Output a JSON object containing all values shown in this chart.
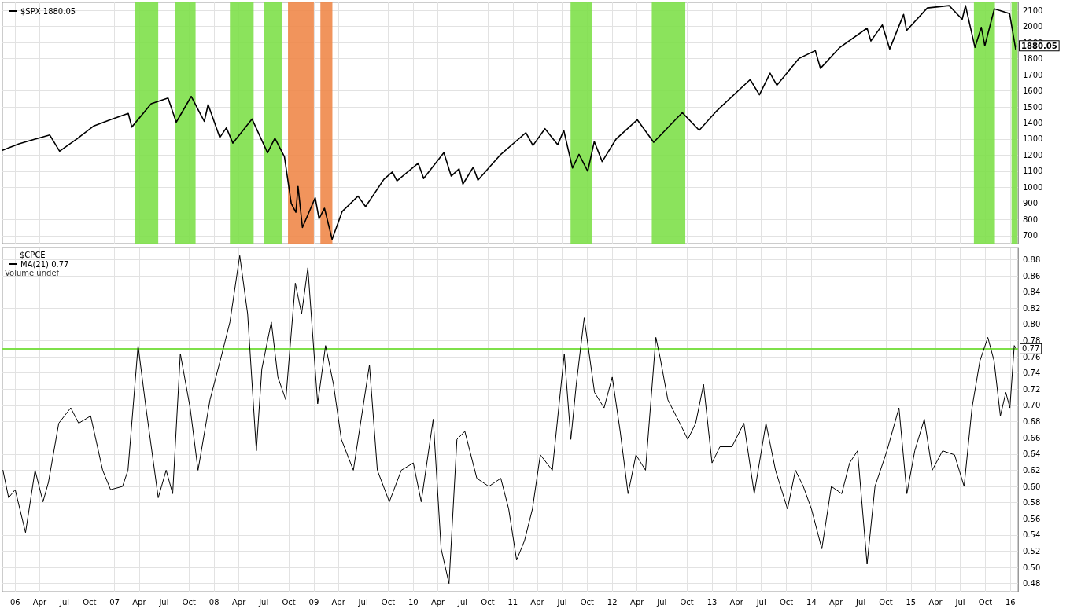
{
  "chart_data": [
    {
      "type": "line",
      "legend": "top left",
      "grid": true,
      "marker": "none",
      "line_style": "solid",
      "tick_labels": "y",
      "xlim": [
        "2005-11-15",
        "2016-01-29"
      ],
      "xticks": [
        {
          "value": "2006-01-01",
          "label": null
        },
        {
          "value": "2006-04-01",
          "label": null
        },
        {
          "value": "2006-07-01",
          "label": null
        },
        {
          "value": "2006-10-01",
          "label": null
        },
        {
          "value": "2007-01-01",
          "label": null
        },
        {
          "value": "2007-04-01",
          "label": null
        },
        {
          "value": "2007-07-01",
          "label": null
        },
        {
          "value": "2007-10-01",
          "label": null
        },
        {
          "value": "2008-01-01",
          "label": null
        },
        {
          "value": "2008-04-01",
          "label": null
        },
        {
          "value": "2008-07-01",
          "label": null
        },
        {
          "value": "2008-10-01",
          "label": null
        },
        {
          "value": "2009-01-01",
          "label": null
        },
        {
          "value": "2009-04-01",
          "label": null
        },
        {
          "value": "2009-07-01",
          "label": null
        },
        {
          "value": "2009-10-01",
          "label": null
        },
        {
          "value": "2010-01-01",
          "label": null
        },
        {
          "value": "2010-04-01",
          "label": null
        },
        {
          "value": "2010-07-01",
          "label": null
        },
        {
          "value": "2010-10-01",
          "label": null
        },
        {
          "value": "2011-01-01",
          "label": null
        },
        {
          "value": "2011-04-01",
          "label": null
        },
        {
          "value": "2011-07-01",
          "label": null
        },
        {
          "value": "2011-10-01",
          "label": null
        },
        {
          "value": "2012-01-01",
          "label": null
        },
        {
          "value": "2012-04-01",
          "label": null
        },
        {
          "value": "2012-07-01",
          "label": null
        },
        {
          "value": "2012-10-01",
          "label": null
        },
        {
          "value": "2013-01-01",
          "label": null
        },
        {
          "value": "2013-04-01",
          "label": null
        },
        {
          "value": "2013-07-01",
          "label": null
        },
        {
          "value": "2013-10-01",
          "label": null
        },
        {
          "value": "2014-01-01",
          "label": null
        },
        {
          "value": "2014-04-01",
          "label": null
        },
        {
          "value": "2014-07-01",
          "label": null
        },
        {
          "value": "2014-10-01",
          "label": null
        },
        {
          "value": "2015-01-01",
          "label": null
        },
        {
          "value": "2015-04-01",
          "label": null
        },
        {
          "value": "2015-07-01",
          "label": null
        },
        {
          "value": "2015-10-01",
          "label": null
        },
        {
          "value": "2016-01-01",
          "label": null
        }
      ],
      "ylim": [
        650,
        2150
      ],
      "yticks": [
        700,
        800,
        900,
        1000,
        1100,
        1200,
        1300,
        1400,
        1500,
        1600,
        1700,
        1800,
        1900,
        2000,
        2100
      ],
      "series": [
        {
          "name": "$SPX 1880.05",
          "color": "#000000",
          "x": [
            "2005-11-15",
            "2006-01-15",
            "2006-03-15",
            "2006-05-08",
            "2006-06-13",
            "2006-08-15",
            "2006-10-15",
            "2006-12-15",
            "2007-02-20",
            "2007-03-05",
            "2007-05-15",
            "2007-07-16",
            "2007-08-15",
            "2007-10-09",
            "2007-11-26",
            "2007-12-10",
            "2008-01-22",
            "2008-02-15",
            "2008-03-10",
            "2008-05-19",
            "2008-07-15",
            "2008-08-11",
            "2008-09-15",
            "2008-10-10",
            "2008-10-27",
            "2008-11-04",
            "2008-11-20",
            "2009-01-06",
            "2009-01-20",
            "2009-02-09",
            "2009-03-09",
            "2009-04-15",
            "2009-06-12",
            "2009-07-10",
            "2009-09-15",
            "2009-10-16",
            "2009-11-02",
            "2010-01-19",
            "2010-02-08",
            "2010-04-23",
            "2010-05-20",
            "2010-06-18",
            "2010-07-02",
            "2010-08-09",
            "2010-08-26",
            "2010-11-15",
            "2011-01-15",
            "2011-02-18",
            "2011-03-16",
            "2011-04-29",
            "2011-06-15",
            "2011-07-07",
            "2011-08-08",
            "2011-09-01",
            "2011-10-03",
            "2011-10-27",
            "2011-11-25",
            "2012-01-15",
            "2012-04-02",
            "2012-06-01",
            "2012-09-14",
            "2012-11-15",
            "2013-01-15",
            "2013-05-21",
            "2013-06-24",
            "2013-08-02",
            "2013-08-27",
            "2013-11-15",
            "2014-01-15",
            "2014-02-03",
            "2014-04-15",
            "2014-07-24",
            "2014-08-07",
            "2014-09-18",
            "2014-10-15",
            "2014-12-05",
            "2014-12-16",
            "2015-03-02",
            "2015-05-21",
            "2015-07-08",
            "2015-07-20",
            "2015-08-24",
            "2015-09-16",
            "2015-09-29",
            "2015-11-03",
            "2015-12-29",
            "2016-01-20",
            "2016-01-22"
          ],
          "values": [
            1230,
            1270,
            1300,
            1325,
            1225,
            1300,
            1380,
            1420,
            1460,
            1375,
            1520,
            1555,
            1405,
            1565,
            1410,
            1515,
            1310,
            1370,
            1275,
            1425,
            1215,
            1305,
            1190,
            900,
            845,
            1005,
            750,
            935,
            805,
            870,
            677,
            850,
            945,
            880,
            1050,
            1095,
            1040,
            1150,
            1055,
            1215,
            1070,
            1115,
            1020,
            1125,
            1045,
            1200,
            1290,
            1340,
            1260,
            1365,
            1265,
            1355,
            1120,
            1205,
            1100,
            1285,
            1160,
            1300,
            1420,
            1280,
            1465,
            1355,
            1470,
            1670,
            1575,
            1710,
            1635,
            1800,
            1850,
            1740,
            1870,
            1990,
            1910,
            2010,
            1860,
            2075,
            1975,
            2115,
            2130,
            2045,
            2130,
            1870,
            1995,
            1880,
            2110,
            2080,
            1860,
            1880.05
          ]
        }
      ],
      "bands": [
        {
          "axis": "x",
          "from": "2007-03-15",
          "to": "2007-06-10",
          "color": "#7ee04a"
        },
        {
          "axis": "x",
          "from": "2007-08-10",
          "to": "2007-10-25",
          "color": "#7ee04a"
        },
        {
          "axis": "x",
          "from": "2008-02-28",
          "to": "2008-05-25",
          "color": "#7ee04a"
        },
        {
          "axis": "x",
          "from": "2008-07-01",
          "to": "2008-09-05",
          "color": "#7ee04a"
        },
        {
          "axis": "x",
          "from": "2008-09-28",
          "to": "2009-01-01",
          "color": "#f0884a"
        },
        {
          "axis": "x",
          "from": "2009-01-25",
          "to": "2009-03-10",
          "color": "#f0884a"
        },
        {
          "axis": "x",
          "from": "2011-08-01",
          "to": "2011-10-20",
          "color": "#7ee04a"
        },
        {
          "axis": "x",
          "from": "2012-05-25",
          "to": "2012-09-25",
          "color": "#7ee04a"
        },
        {
          "axis": "x",
          "from": "2015-08-20",
          "to": "2015-11-05",
          "color": "#7ee04a"
        },
        {
          "axis": "x",
          "from": "2016-01-05",
          "to": "2016-01-27",
          "color": "#7ee04a"
        }
      ],
      "annotations": [
        {
          "text": "1880.05",
          "x": "2016-01-22",
          "y": 1880.05
        }
      ]
    },
    {
      "type": "line",
      "title": "$CPCE",
      "legend": "top left",
      "grid": true,
      "marker": "none",
      "line_style": "solid",
      "xlim": [
        "2005-11-15",
        "2016-01-29"
      ],
      "xticks": [
        {
          "value": "2006-01-01",
          "label": "06"
        },
        {
          "value": "2006-04-01",
          "label": "Apr"
        },
        {
          "value": "2006-07-01",
          "label": "Jul"
        },
        {
          "value": "2006-10-01",
          "label": "Oct"
        },
        {
          "value": "2007-01-01",
          "label": "07"
        },
        {
          "value": "2007-04-01",
          "label": "Apr"
        },
        {
          "value": "2007-07-01",
          "label": "Jul"
        },
        {
          "value": "2007-10-01",
          "label": "Oct"
        },
        {
          "value": "2008-01-01",
          "label": "08"
        },
        {
          "value": "2008-04-01",
          "label": "Apr"
        },
        {
          "value": "2008-07-01",
          "label": "Jul"
        },
        {
          "value": "2008-10-01",
          "label": "Oct"
        },
        {
          "value": "2009-01-01",
          "label": "09"
        },
        {
          "value": "2009-04-01",
          "label": "Apr"
        },
        {
          "value": "2009-07-01",
          "label": "Jul"
        },
        {
          "value": "2009-10-01",
          "label": "Oct"
        },
        {
          "value": "2010-01-01",
          "label": "10"
        },
        {
          "value": "2010-04-01",
          "label": "Apr"
        },
        {
          "value": "2010-07-01",
          "label": "Jul"
        },
        {
          "value": "2010-10-01",
          "label": "Oct"
        },
        {
          "value": "2011-01-01",
          "label": "11"
        },
        {
          "value": "2011-04-01",
          "label": "Apr"
        },
        {
          "value": "2011-07-01",
          "label": "Jul"
        },
        {
          "value": "2011-10-01",
          "label": "Oct"
        },
        {
          "value": "2012-01-01",
          "label": "12"
        },
        {
          "value": "2012-04-01",
          "label": "Apr"
        },
        {
          "value": "2012-07-01",
          "label": "Jul"
        },
        {
          "value": "2012-10-01",
          "label": "Oct"
        },
        {
          "value": "2013-01-01",
          "label": "13"
        },
        {
          "value": "2013-04-01",
          "label": "Apr"
        },
        {
          "value": "2013-07-01",
          "label": "Jul"
        },
        {
          "value": "2013-10-01",
          "label": "Oct"
        },
        {
          "value": "2014-01-01",
          "label": "14"
        },
        {
          "value": "2014-04-01",
          "label": "Apr"
        },
        {
          "value": "2014-07-01",
          "label": "Jul"
        },
        {
          "value": "2014-10-01",
          "label": "Oct"
        },
        {
          "value": "2015-01-01",
          "label": "15"
        },
        {
          "value": "2015-04-01",
          "label": "Apr"
        },
        {
          "value": "2015-07-01",
          "label": "Jul"
        },
        {
          "value": "2015-10-01",
          "label": "Oct"
        },
        {
          "value": "2016-01-01",
          "label": "16"
        }
      ],
      "ylim": [
        0.47,
        0.895
      ],
      "yticks": [
        0.48,
        {
          "value": 0.5,
          "label": "0.50"
        },
        0.52,
        0.54,
        0.56,
        0.58,
        {
          "value": 0.6,
          "label": "0.60"
        },
        0.62,
        0.64,
        0.66,
        0.68,
        {
          "value": 0.7,
          "label": "0.70"
        },
        0.72,
        0.74,
        0.76,
        0.78,
        {
          "value": 0.8,
          "label": "0.80"
        },
        0.82,
        0.84,
        0.86,
        0.88
      ],
      "series": [
        {
          "name": "MA(21) 0.77",
          "color": "#000000",
          "x": [
            "2005-11-17",
            "2005-12-08",
            "2006-01-01",
            "2006-02-08",
            "2006-03-15",
            "2006-04-13",
            "2006-05-03",
            "2006-06-10",
            "2006-07-24",
            "2006-08-22",
            "2006-10-05",
            "2006-11-18",
            "2006-12-17",
            "2007-01-30",
            "2007-02-19",
            "2007-03-28",
            "2007-04-26",
            "2007-06-10",
            "2007-07-09",
            "2007-08-02",
            "2007-08-30",
            "2007-10-05",
            "2007-11-03",
            "2007-12-17",
            "2008-01-30",
            "2008-02-28",
            "2008-04-04",
            "2008-05-03",
            "2008-06-04",
            "2008-06-24",
            "2008-07-29",
            "2008-08-22",
            "2008-09-20",
            "2008-10-25",
            "2008-11-17",
            "2008-12-10",
            "2009-01-15",
            "2009-02-13",
            "2009-03-14",
            "2009-04-12",
            "2009-05-26",
            "2009-07-24",
            "2009-08-22",
            "2009-10-05",
            "2009-11-18",
            "2010-01-01",
            "2010-01-30",
            "2010-03-15",
            "2010-04-13",
            "2010-05-12",
            "2010-06-10",
            "2010-07-09",
            "2010-08-22",
            "2010-10-05",
            "2010-11-18",
            "2010-12-17",
            "2011-01-15",
            "2011-02-13",
            "2011-03-14",
            "2011-04-12",
            "2011-05-26",
            "2011-07-09",
            "2011-08-02",
            "2011-08-22",
            "2011-09-20",
            "2011-10-28",
            "2011-12-02",
            "2012-01-01",
            "2012-01-30",
            "2012-02-28",
            "2012-03-28",
            "2012-05-02",
            "2012-06-09",
            "2012-06-24",
            "2012-07-23",
            "2012-09-05",
            "2012-10-04",
            "2012-11-02",
            "2012-12-01",
            "2013-01-01",
            "2013-01-30",
            "2013-03-15",
            "2013-04-28",
            "2013-06-05",
            "2013-07-18",
            "2013-08-22",
            "2013-10-05",
            "2013-11-03",
            "2013-12-02",
            "2014-01-01",
            "2014-02-08",
            "2014-03-15",
            "2014-04-22",
            "2014-05-21",
            "2014-06-19",
            "2014-07-24",
            "2014-08-22",
            "2014-10-05",
            "2014-11-18",
            "2014-12-17",
            "2015-01-15",
            "2015-02-19",
            "2015-03-20",
            "2015-04-27",
            "2015-06-10",
            "2015-07-15",
            "2015-08-13",
            "2015-09-11",
            "2015-10-10",
            "2015-11-02",
            "2015-11-25",
            "2015-12-15",
            "2015-12-30",
            "2016-01-15",
            "2016-01-22"
          ],
          "values": [
            0.62,
            0.586,
            0.596,
            0.543,
            0.62,
            0.581,
            0.605,
            0.678,
            0.697,
            0.678,
            0.687,
            0.62,
            0.596,
            0.6,
            0.62,
            0.774,
            0.697,
            0.586,
            0.62,
            0.591,
            0.764,
            0.697,
            0.62,
            0.707,
            0.764,
            0.803,
            0.885,
            0.813,
            0.644,
            0.745,
            0.803,
            0.735,
            0.707,
            0.851,
            0.813,
            0.87,
            0.702,
            0.774,
            0.726,
            0.658,
            0.62,
            0.75,
            0.62,
            0.581,
            0.62,
            0.629,
            0.581,
            0.683,
            0.523,
            0.48,
            0.658,
            0.668,
            0.61,
            0.6,
            0.61,
            0.572,
            0.509,
            0.533,
            0.572,
            0.639,
            0.62,
            0.764,
            0.658,
            0.726,
            0.808,
            0.716,
            0.697,
            0.735,
            0.668,
            0.591,
            0.639,
            0.62,
            0.784,
            0.76,
            0.707,
            0.678,
            0.658,
            0.678,
            0.726,
            0.629,
            0.649,
            0.649,
            0.678,
            0.591,
            0.678,
            0.62,
            0.572,
            0.62,
            0.6,
            0.572,
            0.523,
            0.6,
            0.591,
            0.629,
            0.644,
            0.504,
            0.6,
            0.644,
            0.697,
            0.591,
            0.644,
            0.683,
            0.62,
            0.644,
            0.639,
            0.6,
            0.697,
            0.755,
            0.784,
            0.755,
            0.687,
            0.716,
            0.697,
            0.774,
            0.77
          ]
        }
      ],
      "ref_lines": [
        {
          "axis": "y",
          "value": 0.77,
          "label": "0.77",
          "color": "#7ee04a",
          "line_style": "solid"
        }
      ],
      "annotations": [
        "Volume undef"
      ]
    }
  ]
}
